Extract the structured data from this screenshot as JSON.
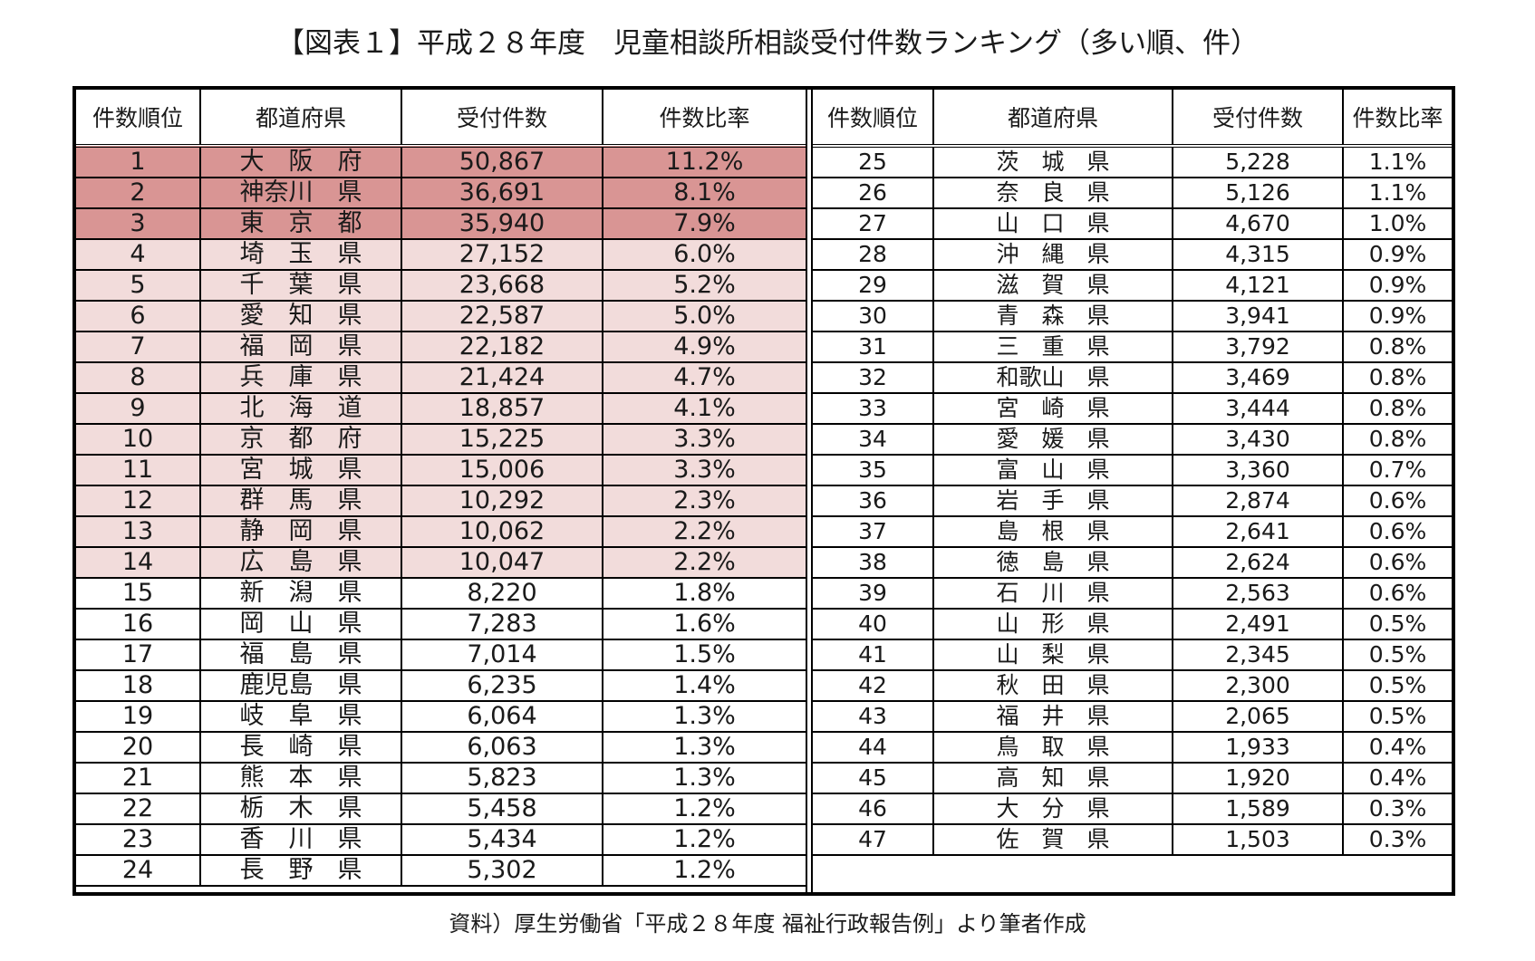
{
  "title": "【図表１】平成２８年度　児童相談所相談受付件数ランキング（多い順、件）",
  "columns": [
    "件数順位",
    "都道府県",
    "受付件数",
    "件数比率"
  ],
  "highlight_colors": {
    "top3": "#d99594",
    "top4_14": "#f2dcdb",
    "rest": "#ffffff"
  },
  "left_rows": [
    {
      "rank": "1",
      "prefecture": "大　阪　府",
      "count": "50,867",
      "ratio": "11.2%",
      "tier": "hot"
    },
    {
      "rank": "2",
      "prefecture": "神奈川　県",
      "count": "36,691",
      "ratio": "8.1%",
      "tier": "hot"
    },
    {
      "rank": "3",
      "prefecture": "東　京　都",
      "count": "35,940",
      "ratio": "7.9%",
      "tier": "hot"
    },
    {
      "rank": "4",
      "prefecture": "埼　玉　県",
      "count": "27,152",
      "ratio": "6.0%",
      "tier": "warm"
    },
    {
      "rank": "5",
      "prefecture": "千　葉　県",
      "count": "23,668",
      "ratio": "5.2%",
      "tier": "warm"
    },
    {
      "rank": "6",
      "prefecture": "愛　知　県",
      "count": "22,587",
      "ratio": "5.0%",
      "tier": "warm"
    },
    {
      "rank": "7",
      "prefecture": "福　岡　県",
      "count": "22,182",
      "ratio": "4.9%",
      "tier": "warm"
    },
    {
      "rank": "8",
      "prefecture": "兵　庫　県",
      "count": "21,424",
      "ratio": "4.7%",
      "tier": "warm"
    },
    {
      "rank": "9",
      "prefecture": "北　海　道",
      "count": "18,857",
      "ratio": "4.1%",
      "tier": "warm"
    },
    {
      "rank": "10",
      "prefecture": "京　都　府",
      "count": "15,225",
      "ratio": "3.3%",
      "tier": "warm"
    },
    {
      "rank": "11",
      "prefecture": "宮　城　県",
      "count": "15,006",
      "ratio": "3.3%",
      "tier": "warm"
    },
    {
      "rank": "12",
      "prefecture": "群　馬　県",
      "count": "10,292",
      "ratio": "2.3%",
      "tier": "warm"
    },
    {
      "rank": "13",
      "prefecture": "静　岡　県",
      "count": "10,062",
      "ratio": "2.2%",
      "tier": "warm"
    },
    {
      "rank": "14",
      "prefecture": "広　島　県",
      "count": "10,047",
      "ratio": "2.2%",
      "tier": "warm"
    },
    {
      "rank": "15",
      "prefecture": "新　潟　県",
      "count": "8,220",
      "ratio": "1.8%",
      "tier": "plain"
    },
    {
      "rank": "16",
      "prefecture": "岡　山　県",
      "count": "7,283",
      "ratio": "1.6%",
      "tier": "plain"
    },
    {
      "rank": "17",
      "prefecture": "福　島　県",
      "count": "7,014",
      "ratio": "1.5%",
      "tier": "plain"
    },
    {
      "rank": "18",
      "prefecture": "鹿児島　県",
      "count": "6,235",
      "ratio": "1.4%",
      "tier": "plain"
    },
    {
      "rank": "19",
      "prefecture": "岐　阜　県",
      "count": "6,064",
      "ratio": "1.3%",
      "tier": "plain"
    },
    {
      "rank": "20",
      "prefecture": "長　崎　県",
      "count": "6,063",
      "ratio": "1.3%",
      "tier": "plain"
    },
    {
      "rank": "21",
      "prefecture": "熊　本　県",
      "count": "5,823",
      "ratio": "1.3%",
      "tier": "plain"
    },
    {
      "rank": "22",
      "prefecture": "栃　木　県",
      "count": "5,458",
      "ratio": "1.2%",
      "tier": "plain"
    },
    {
      "rank": "23",
      "prefecture": "香　川　県",
      "count": "5,434",
      "ratio": "1.2%",
      "tier": "plain"
    },
    {
      "rank": "24",
      "prefecture": "長　野　県",
      "count": "5,302",
      "ratio": "1.2%",
      "tier": "plain"
    }
  ],
  "right_rows": [
    {
      "rank": "25",
      "prefecture": "茨　城　県",
      "count": "5,228",
      "ratio": "1.1%"
    },
    {
      "rank": "26",
      "prefecture": "奈　良　県",
      "count": "5,126",
      "ratio": "1.1%"
    },
    {
      "rank": "27",
      "prefecture": "山　口　県",
      "count": "4,670",
      "ratio": "1.0%"
    },
    {
      "rank": "28",
      "prefecture": "沖　縄　県",
      "count": "4,315",
      "ratio": "0.9%"
    },
    {
      "rank": "29",
      "prefecture": "滋　賀　県",
      "count": "4,121",
      "ratio": "0.9%"
    },
    {
      "rank": "30",
      "prefecture": "青　森　県",
      "count": "3,941",
      "ratio": "0.9%"
    },
    {
      "rank": "31",
      "prefecture": "三　重　県",
      "count": "3,792",
      "ratio": "0.8%"
    },
    {
      "rank": "32",
      "prefecture": "和歌山　県",
      "count": "3,469",
      "ratio": "0.8%"
    },
    {
      "rank": "33",
      "prefecture": "宮　崎　県",
      "count": "3,444",
      "ratio": "0.8%"
    },
    {
      "rank": "34",
      "prefecture": "愛　媛　県",
      "count": "3,430",
      "ratio": "0.8%"
    },
    {
      "rank": "35",
      "prefecture": "富　山　県",
      "count": "3,360",
      "ratio": "0.7%"
    },
    {
      "rank": "36",
      "prefecture": "岩　手　県",
      "count": "2,874",
      "ratio": "0.6%"
    },
    {
      "rank": "37",
      "prefecture": "島　根　県",
      "count": "2,641",
      "ratio": "0.6%"
    },
    {
      "rank": "38",
      "prefecture": "徳　島　県",
      "count": "2,624",
      "ratio": "0.6%"
    },
    {
      "rank": "39",
      "prefecture": "石　川　県",
      "count": "2,563",
      "ratio": "0.6%"
    },
    {
      "rank": "40",
      "prefecture": "山　形　県",
      "count": "2,491",
      "ratio": "0.5%"
    },
    {
      "rank": "41",
      "prefecture": "山　梨　県",
      "count": "2,345",
      "ratio": "0.5%"
    },
    {
      "rank": "42",
      "prefecture": "秋　田　県",
      "count": "2,300",
      "ratio": "0.5%"
    },
    {
      "rank": "43",
      "prefecture": "福　井　県",
      "count": "2,065",
      "ratio": "0.5%"
    },
    {
      "rank": "44",
      "prefecture": "鳥　取　県",
      "count": "1,933",
      "ratio": "0.4%"
    },
    {
      "rank": "45",
      "prefecture": "高　知　県",
      "count": "1,920",
      "ratio": "0.4%"
    },
    {
      "rank": "46",
      "prefecture": "大　分　県",
      "count": "1,589",
      "ratio": "0.3%"
    },
    {
      "rank": "47",
      "prefecture": "佐　賀　県",
      "count": "1,503",
      "ratio": "0.3%"
    }
  ],
  "source": "資料）厚生労働省「平成２８年度 福祉行政報告例」より筆者作成"
}
